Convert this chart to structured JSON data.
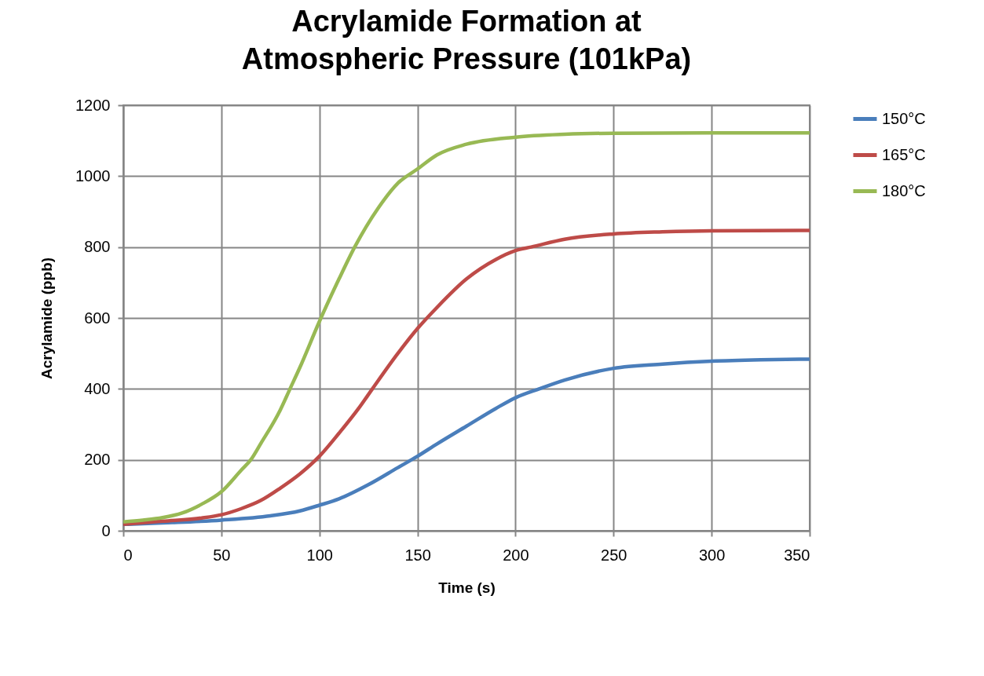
{
  "chart_data": {
    "type": "line",
    "title": "Acrylamide Formation at Atmospheric Pressure (101kPa)",
    "xlabel": "Time (s)",
    "ylabel": "Acrylamide (ppb)",
    "xlim": [
      0,
      350
    ],
    "xticks": [
      0,
      50,
      100,
      150,
      200,
      250,
      300,
      350
    ],
    "ylim": [
      0,
      1200
    ],
    "yticks": [
      0,
      200,
      400,
      600,
      800,
      1000,
      1200
    ],
    "grid": true,
    "legend": "right",
    "line_style": "solid",
    "series": [
      {
        "name": "150°C",
        "color": "#4a7ebb",
        "x": [
          0,
          25,
          50,
          75,
          90,
          100,
          110,
          125,
          140,
          150,
          160,
          175,
          190,
          200,
          212,
          225,
          250,
          275,
          300,
          325,
          350
        ],
        "values": [
          18,
          23,
          30,
          42,
          56,
          72,
          90,
          130,
          178,
          210,
          245,
          295,
          345,
          375,
          400,
          425,
          458,
          470,
          478,
          482,
          484
        ]
      },
      {
        "name": "165°C",
        "color": "#be4b48",
        "x": [
          0,
          20,
          40,
          50,
          60,
          70,
          80,
          90,
          100,
          110,
          120,
          127,
          140,
          150,
          160,
          175,
          190,
          200,
          208,
          225,
          250,
          275,
          300,
          350
        ],
        "values": [
          18,
          27,
          36,
          45,
          62,
          85,
          120,
          160,
          210,
          275,
          345,
          400,
          500,
          570,
          630,
          710,
          765,
          790,
          800,
          822,
          837,
          843,
          846,
          847
        ]
      },
      {
        "name": "180°C",
        "color": "#98b954",
        "x": [
          0,
          10,
          20,
          30,
          40,
          50,
          60,
          65,
          70,
          80,
          85,
          90,
          100,
          110,
          118,
          130,
          140,
          150,
          160,
          175,
          200,
          225,
          250,
          300,
          350
        ],
        "values": [
          25,
          30,
          37,
          50,
          75,
          110,
          170,
          200,
          245,
          340,
          400,
          460,
          590,
          710,
          800,
          910,
          980,
          1020,
          1060,
          1090,
          1110,
          1118,
          1121,
          1122,
          1122
        ]
      }
    ]
  }
}
